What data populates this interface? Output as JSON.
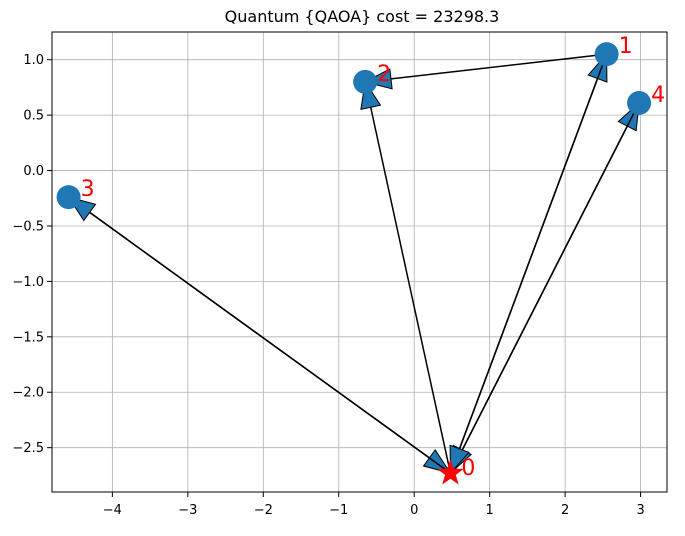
{
  "chart_data": {
    "type": "scatter",
    "title": "Quantum {QAOA} cost = 23298.3",
    "xlabel": "",
    "ylabel": "",
    "xlim": [
      -4.8,
      3.35
    ],
    "ylim": [
      -2.9,
      1.25
    ],
    "xticks": [
      -4,
      -3,
      -2,
      -1,
      0,
      1,
      2,
      3
    ],
    "yticks": [
      1.0,
      0.5,
      0.0,
      -0.5,
      -1.0,
      -1.5,
      -2.0,
      -2.5
    ],
    "xtick_labels": [
      "−4",
      "−3",
      "−2",
      "−1",
      "0",
      "1",
      "2",
      "3"
    ],
    "ytick_labels": [
      "1.0",
      "0.5",
      "0.0",
      "−0.5",
      "−1.0",
      "−1.5",
      "−2.0",
      "−2.5"
    ],
    "grid": true,
    "depot": {
      "label": "0",
      "x": 0.48,
      "y": -2.73
    },
    "points": [
      {
        "label": "1",
        "x": 2.55,
        "y": 1.05
      },
      {
        "label": "2",
        "x": -0.65,
        "y": 0.8
      },
      {
        "label": "3",
        "x": -4.58,
        "y": -0.24
      },
      {
        "label": "4",
        "x": 2.98,
        "y": 0.61
      }
    ],
    "arrows": [
      {
        "from": "1",
        "to": "2"
      },
      {
        "from": "0",
        "to": "2"
      },
      {
        "from": "0",
        "to": "1"
      },
      {
        "from": "0",
        "to": "4"
      },
      {
        "from": "4",
        "to": "0"
      },
      {
        "from": "1",
        "to": "0"
      },
      {
        "from": "3",
        "to": "0"
      },
      {
        "from": "0",
        "to": "3"
      }
    ],
    "colors": {
      "point": "#1f77b4",
      "depot": "#ff0000",
      "label": "#ff0000",
      "arrow_line": "#000000",
      "arrow_head": "#1f77b4",
      "grid": "#b0b0b0"
    }
  }
}
